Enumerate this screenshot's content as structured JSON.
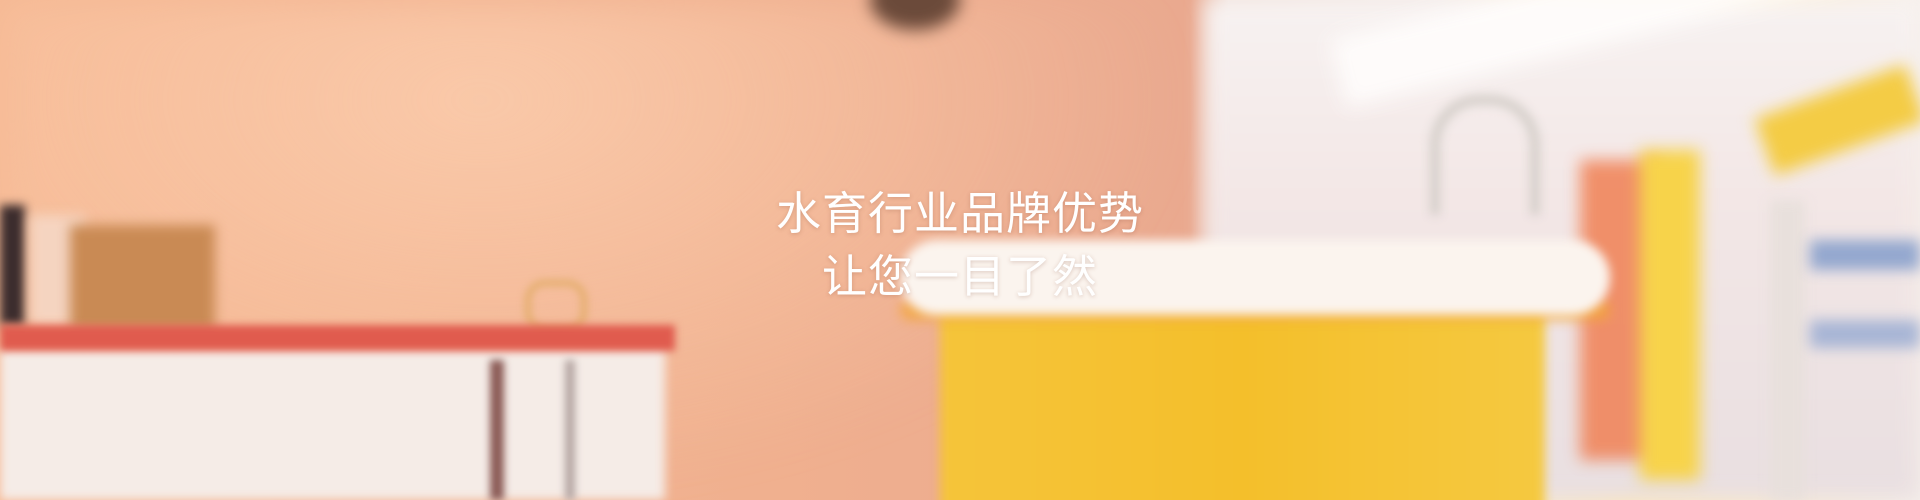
{
  "banner": {
    "title_line1": "水育行业品牌优势",
    "title_line2": "让您一目了然",
    "text_color": "#ffffff",
    "accent_colors": {
      "wall": "#f0b08f",
      "tub": "#f4bf2b",
      "counter_top": "#e05b4e"
    }
  }
}
